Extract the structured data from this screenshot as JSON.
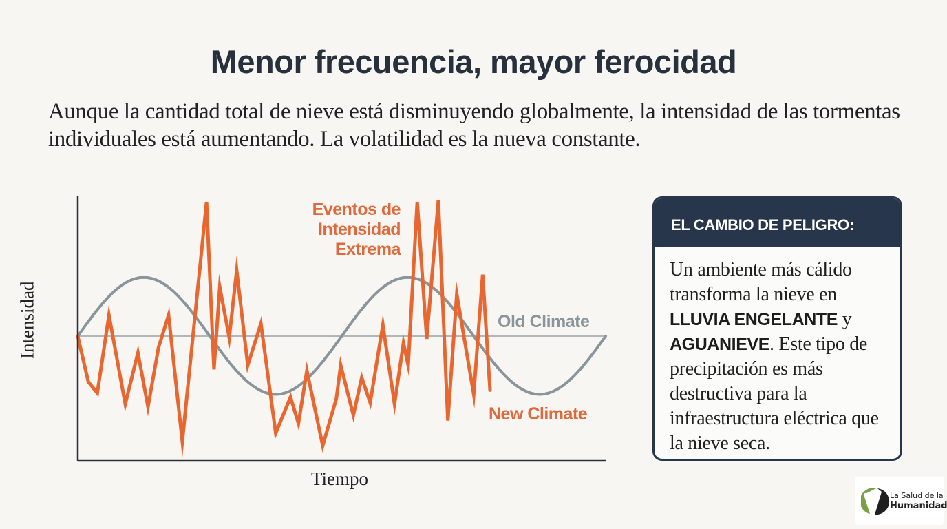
{
  "header": {
    "title": "Menor frecuencia, mayor ferocidad",
    "subtitle": "Aunque la cantidad total de nieve está disminuyendo globalmente, la intensidad de las tormentas individuales está aumentando. La volatilidad es la nueva constante."
  },
  "chart_data": {
    "type": "line",
    "title": "",
    "xlabel": "Tiempo",
    "ylabel": "Intensidad",
    "xlim": [
      0,
      100
    ],
    "ylim": [
      -9,
      10
    ],
    "grid": false,
    "baseline": 0,
    "annotations": [
      {
        "text": "Eventos de Intensidad Extrema",
        "color": "#e0683a",
        "placement": "top-center"
      },
      {
        "text": "Old Climate",
        "color": "#8a949b",
        "placement": "right, above baseline"
      },
      {
        "text": "New Climate",
        "color": "#e0683a",
        "placement": "bottom-right"
      }
    ],
    "series": [
      {
        "name": "Old Climate",
        "color": "#8a949b",
        "kind": "sine",
        "amplitude": 4.2,
        "period": 50,
        "phase_start": 0,
        "x_range": [
          0,
          100
        ]
      },
      {
        "name": "New Climate",
        "color": "#e8662f",
        "x": [
          0,
          2.0,
          3.7,
          5.9,
          9.0,
          11.4,
          13.3,
          15.3,
          17.2,
          19.8,
          24.4,
          25.8,
          26.9,
          28.7,
          30.1,
          32.2,
          34.7,
          37.5,
          40.3,
          41.8,
          43.4,
          46.4,
          49.0,
          49.8,
          52.2,
          53.8,
          55.4,
          57.8,
          60.0,
          61.7,
          62.6,
          64.3,
          66.1,
          68.3,
          70.1,
          71.8,
          75.0,
          76.7,
          78.1
        ],
        "y": [
          0,
          -3.3,
          -4.1,
          1.5,
          -4.9,
          -1.2,
          -5.1,
          -0.8,
          1.5,
          -7.6,
          9.6,
          -2.4,
          3.5,
          -0.1,
          4.7,
          -2.1,
          0.9,
          -7.0,
          -4.4,
          -6.3,
          -2.5,
          -7.9,
          -4.5,
          -2.1,
          -5.7,
          -3.0,
          -4.8,
          0.8,
          -4.9,
          -0.5,
          -2.1,
          9.6,
          -0.2,
          9.7,
          -6.1,
          3.0,
          -4.2,
          4.4,
          -3.9
        ]
      }
    ]
  },
  "card": {
    "heading": "EL CAMBIO DE PELIGRO:",
    "text_1": "Un ambiente más cálido transforma la nieve en ",
    "bold_1": "LLUVIA ENGELANTE",
    "text_2": " y ",
    "bold_2": "AGUANIEVE",
    "text_3": ". Este tipo de precipitación es más destructiva para la infraestructura eléctrica que la nieve seca."
  },
  "logo": {
    "line1": "La Salud de la",
    "line2": "Humanidad",
    "green": "#7aa046",
    "dark": "#1e1e1e"
  }
}
